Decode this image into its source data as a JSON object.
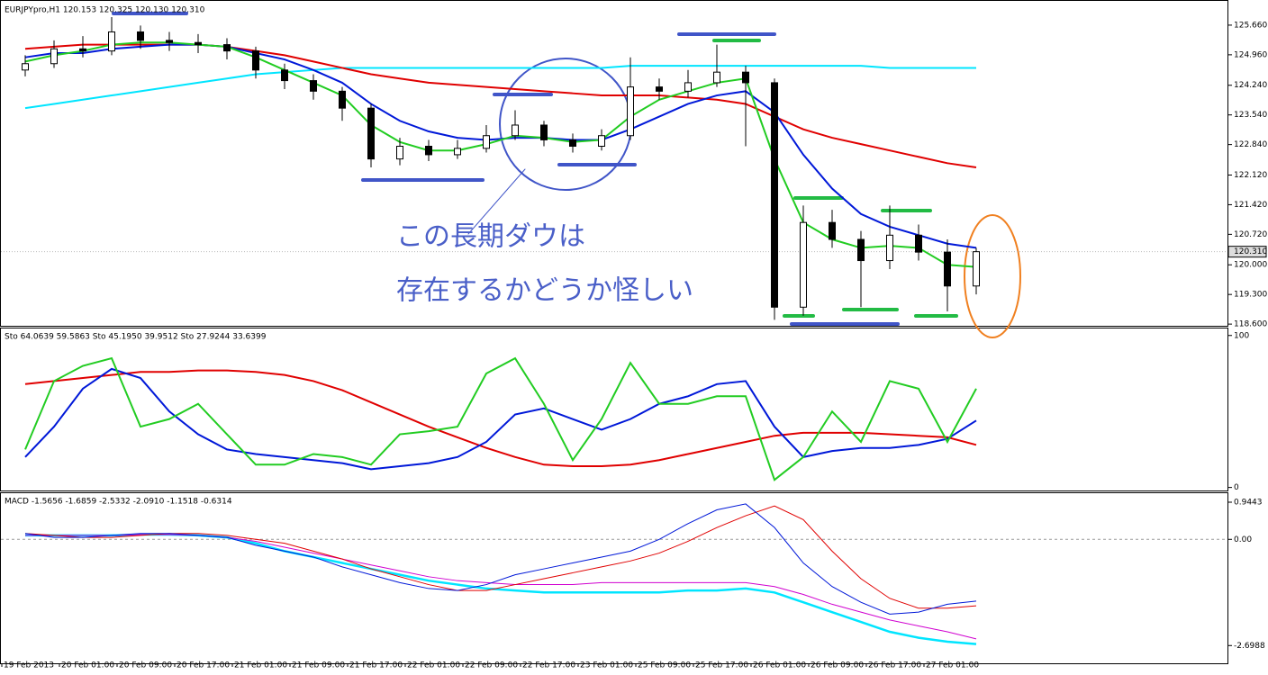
{
  "chart_data": [
    {
      "type": "candlestick",
      "title": "EURJPYpro,H1  120.153 120.325 120.130 120.310",
      "categories": [
        "19 Feb 2013",
        null,
        "20 Feb 01:00",
        null,
        "20 Feb 09:00",
        null,
        "20 Feb 17:00",
        null,
        "21 Feb 01:00",
        null,
        "21 Feb 09:00",
        null,
        "21 Feb 17:00",
        null,
        "22 Feb 01:00",
        null,
        "22 Feb 09:00",
        null,
        "22 Feb 17:00",
        null,
        "23 Feb 01:00",
        null,
        "25 Feb 09:00",
        null,
        "25 Feb 17:00",
        null,
        "26 Feb 01:00",
        null,
        "26 Feb 09:00",
        null,
        "26 Feb 17:00",
        null,
        "27 Feb 01:00",
        null
      ],
      "candles": {
        "open": [
          124.6,
          124.75,
          125.1,
          125.05,
          125.5,
          125.3,
          125.25,
          125.2,
          125.05,
          124.6,
          124.35,
          124.1,
          123.7,
          122.5,
          122.8,
          122.6,
          122.75,
          123.05,
          123.3,
          122.95,
          122.8,
          123.05,
          124.2,
          124.1,
          124.3,
          124.55,
          124.3,
          119.0,
          121.0,
          120.6,
          120.1,
          120.7,
          120.3,
          119.5
        ],
        "high": [
          124.95,
          125.3,
          125.4,
          125.85,
          125.65,
          125.5,
          125.45,
          125.35,
          125.15,
          124.75,
          124.5,
          124.2,
          123.8,
          123.0,
          122.95,
          122.95,
          123.3,
          123.65,
          123.4,
          123.1,
          123.2,
          124.9,
          124.4,
          124.6,
          125.2,
          124.7,
          124.4,
          121.4,
          121.3,
          120.8,
          121.4,
          120.95,
          120.6,
          120.4
        ],
        "low": [
          124.45,
          124.65,
          124.9,
          124.95,
          125.1,
          125.05,
          125.0,
          124.85,
          124.4,
          124.15,
          123.9,
          123.4,
          122.3,
          122.35,
          122.45,
          122.5,
          122.65,
          122.95,
          122.8,
          122.65,
          122.7,
          122.95,
          123.9,
          123.95,
          124.2,
          122.8,
          118.7,
          118.8,
          120.4,
          119.0,
          119.9,
          120.1,
          118.9,
          119.3
        ],
        "close": [
          124.75,
          125.1,
          125.05,
          125.5,
          125.3,
          125.25,
          125.2,
          125.05,
          124.6,
          124.35,
          124.1,
          123.7,
          122.5,
          122.8,
          122.6,
          122.75,
          123.05,
          123.3,
          122.95,
          122.8,
          123.05,
          124.2,
          124.1,
          124.3,
          124.55,
          124.3,
          119.0,
          121.0,
          120.6,
          120.1,
          120.7,
          120.3,
          119.5,
          120.31
        ]
      },
      "series": [
        {
          "color": "#00e5ff",
          "values": [
            123.7,
            123.8,
            123.9,
            124.0,
            124.1,
            124.2,
            124.3,
            124.4,
            124.5,
            124.55,
            124.6,
            124.65,
            124.65,
            124.65,
            124.65,
            124.65,
            124.65,
            124.65,
            124.65,
            124.65,
            124.65,
            124.7,
            124.7,
            124.7,
            124.7,
            124.7,
            124.7,
            124.7,
            124.7,
            124.7,
            124.65,
            124.65,
            124.65,
            124.65
          ]
        },
        {
          "color": "#e00000",
          "values": [
            125.1,
            125.15,
            125.2,
            125.2,
            125.2,
            125.2,
            125.2,
            125.15,
            125.05,
            124.95,
            124.8,
            124.65,
            124.5,
            124.4,
            124.3,
            124.25,
            124.2,
            124.15,
            124.1,
            124.05,
            124.0,
            124.0,
            124.0,
            123.95,
            123.9,
            123.8,
            123.5,
            123.2,
            123.0,
            122.85,
            122.7,
            122.55,
            122.4,
            122.3
          ]
        },
        {
          "color": "#0018d8",
          "values": [
            124.9,
            125.0,
            125.0,
            125.1,
            125.15,
            125.2,
            125.2,
            125.15,
            125.0,
            124.85,
            124.6,
            124.3,
            123.8,
            123.4,
            123.15,
            123.0,
            122.95,
            123.0,
            123.0,
            122.95,
            122.95,
            123.2,
            123.5,
            123.8,
            124.0,
            124.1,
            123.6,
            122.6,
            121.8,
            121.2,
            120.9,
            120.7,
            120.5,
            120.4
          ]
        },
        {
          "color": "#22cc22",
          "values": [
            124.8,
            124.95,
            125.05,
            125.2,
            125.25,
            125.25,
            125.2,
            125.15,
            124.9,
            124.6,
            124.3,
            124.0,
            123.3,
            122.9,
            122.7,
            122.7,
            122.85,
            123.05,
            123.0,
            122.9,
            122.95,
            123.5,
            123.9,
            124.1,
            124.3,
            124.4,
            122.5,
            121.0,
            120.6,
            120.4,
            120.45,
            120.4,
            120.0,
            119.95
          ]
        }
      ],
      "ylim": [
        118.56,
        126.19
      ],
      "yticks": [
        {
          "value": 125.66,
          "label": "125.660"
        },
        {
          "value": 124.96,
          "label": "124.960"
        },
        {
          "value": 124.24,
          "label": "124.240"
        },
        {
          "value": 123.54,
          "label": "123.540"
        },
        {
          "value": 122.84,
          "label": "122.840"
        },
        {
          "value": 122.12,
          "label": "122.120"
        },
        {
          "value": 121.42,
          "label": "121.420"
        },
        {
          "value": 120.72,
          "label": "120.720"
        },
        {
          "value": 120,
          "label": "120.000"
        },
        {
          "value": 119.3,
          "label": "119.300"
        },
        {
          "value": 118.6,
          "label": "118.600"
        }
      ],
      "current_price": {
        "value": 120.31,
        "label": "120.310"
      },
      "annotations": [
        "この長期ダウは",
        "存在するかどうか怪しい"
      ]
    },
    {
      "type": "line",
      "title": "Sto 64.0639 59.5863  Sto 45.1950 39.9512  Sto 27.9244 33.6399",
      "series": [
        {
          "color": "#e00000",
          "values": [
            68,
            70,
            72,
            74,
            76,
            76,
            77,
            77,
            76,
            74,
            70,
            64,
            56,
            48,
            40,
            33,
            26,
            20,
            15,
            14,
            14,
            15,
            18,
            22,
            26,
            30,
            34,
            36,
            36,
            36,
            35,
            34,
            33,
            28
          ]
        },
        {
          "color": "#0018d8",
          "values": [
            20,
            40,
            65,
            78,
            72,
            50,
            35,
            25,
            22,
            20,
            18,
            16,
            12,
            14,
            16,
            20,
            30,
            48,
            52,
            45,
            38,
            45,
            55,
            60,
            68,
            70,
            40,
            20,
            24,
            26,
            26,
            28,
            32,
            44
          ]
        },
        {
          "color": "#22cc22",
          "values": [
            25,
            70,
            80,
            85,
            40,
            45,
            55,
            35,
            15,
            15,
            22,
            20,
            15,
            35,
            37,
            40,
            75,
            85,
            55,
            18,
            45,
            82,
            55,
            55,
            60,
            60,
            5,
            20,
            50,
            30,
            70,
            65,
            30,
            65
          ]
        }
      ],
      "ylim": [
        -2,
        104
      ],
      "yticks": [
        100,
        0
      ]
    },
    {
      "type": "line",
      "title": "MACD -1.5656 -1.6859 -2.5332 -2.0910 -1.1518 -0.6314",
      "series": [
        {
          "color": "#00e5ff",
          "width": 2.5,
          "values": [
            0.1,
            0.1,
            0.1,
            0.1,
            0.12,
            0.12,
            0.1,
            0.05,
            -0.1,
            -0.3,
            -0.45,
            -0.6,
            -0.75,
            -0.9,
            -1.05,
            -1.15,
            -1.25,
            -1.3,
            -1.35,
            -1.35,
            -1.35,
            -1.35,
            -1.35,
            -1.3,
            -1.3,
            -1.25,
            -1.35,
            -1.6,
            -1.85,
            -2.1,
            -2.35,
            -2.5,
            -2.6,
            -2.66
          ]
        },
        {
          "color": "#d000d0",
          "width": 1,
          "values": [
            0.1,
            0.1,
            0.1,
            0.1,
            0.12,
            0.12,
            0.1,
            0.05,
            -0.05,
            -0.2,
            -0.35,
            -0.5,
            -0.65,
            -0.8,
            -0.95,
            -1.05,
            -1.1,
            -1.15,
            -1.15,
            -1.15,
            -1.1,
            -1.1,
            -1.1,
            -1.1,
            -1.1,
            -1.1,
            -1.2,
            -1.4,
            -1.65,
            -1.85,
            -2.05,
            -2.2,
            -2.35,
            -2.53
          ]
        },
        {
          "color": "#e00000",
          "width": 1,
          "values": [
            0.15,
            0.1,
            0.05,
            0.05,
            0.1,
            0.15,
            0.15,
            0.1,
            0,
            -0.1,
            -0.3,
            -0.5,
            -0.75,
            -0.95,
            -1.15,
            -1.3,
            -1.3,
            -1.15,
            -1.0,
            -0.85,
            -0.7,
            -0.55,
            -0.35,
            -0.05,
            0.3,
            0.6,
            0.85,
            0.5,
            -0.3,
            -1.0,
            -1.5,
            -1.75,
            -1.75,
            -1.69
          ]
        },
        {
          "color": "#0018d8",
          "width": 1,
          "values": [
            0.15,
            0.05,
            0.05,
            0.1,
            0.15,
            0.15,
            0.1,
            0.05,
            -0.15,
            -0.3,
            -0.45,
            -0.7,
            -0.9,
            -1.1,
            -1.25,
            -1.3,
            -1.15,
            -0.9,
            -0.75,
            -0.6,
            -0.45,
            -0.3,
            0,
            0.4,
            0.75,
            0.9,
            0.3,
            -0.6,
            -1.2,
            -1.6,
            -1.9,
            -1.85,
            -1.65,
            -1.57
          ]
        }
      ],
      "ylim": [
        -3.15,
        1.15
      ],
      "yticks": [
        0.9443,
        {
          "value": 0,
          "label": "0.00"
        },
        -2.6988
      ],
      "zero_line": true
    }
  ]
}
